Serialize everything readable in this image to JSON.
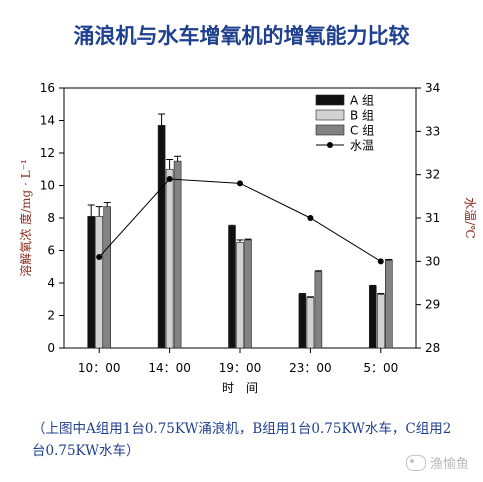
{
  "title": "涌浪机与水车增氧机的增氧能力比较",
  "caption": "（上图中A组用1台0.75KW涌浪机，B组用1台0.75KW水车，C组用2台0.75KW水车）",
  "watermark": "渔愉鱼",
  "chart_data": {
    "type": "bar",
    "categories": [
      "10：00",
      "14：00",
      "19：00",
      "23：00",
      "5：00"
    ],
    "xlabel": "时　间",
    "ylabel": "溶解氧浓 度/mg · L⁻¹",
    "y2label": "水温/℃",
    "ylim": [
      0,
      16
    ],
    "yticks": [
      0,
      2,
      4,
      6,
      8,
      10,
      12,
      14,
      16
    ],
    "y2lim": [
      28,
      34
    ],
    "y2ticks": [
      28,
      29,
      30,
      31,
      32,
      33,
      34
    ],
    "series": [
      {
        "name": "A 组",
        "kind": "bar",
        "color": "#111111",
        "values": [
          8.1,
          13.7,
          7.5,
          3.3,
          3.8
        ],
        "errors": [
          0.7,
          0.7,
          0.05,
          0.05,
          0.05
        ]
      },
      {
        "name": "B 组",
        "kind": "bar",
        "color": "#d2d2d2",
        "values": [
          8.1,
          11.0,
          6.5,
          3.1,
          3.3
        ],
        "errors": [
          0.6,
          0.6,
          0.15,
          0.05,
          0.05
        ]
      },
      {
        "name": "C 组",
        "kind": "bar",
        "color": "#828282",
        "values": [
          8.7,
          11.5,
          6.65,
          4.7,
          5.4
        ],
        "errors": [
          0.25,
          0.3,
          0.05,
          0.05,
          0.05
        ]
      },
      {
        "name": "水温",
        "kind": "line",
        "axis": "right",
        "color": "#000000",
        "values": [
          30.1,
          31.9,
          31.8,
          31.0,
          30.0
        ]
      }
    ],
    "legend_position": "top-right",
    "grid": false
  }
}
